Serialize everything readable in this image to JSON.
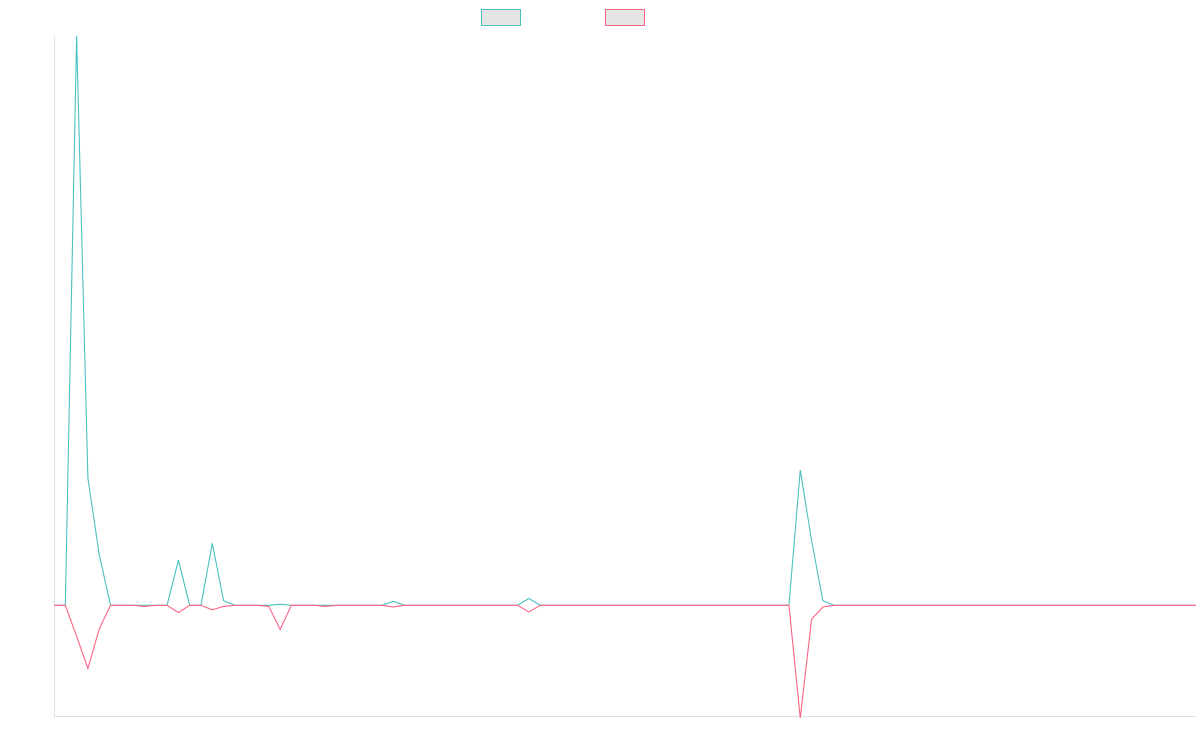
{
  "chart_data": {
    "type": "line",
    "title": "",
    "xlabel": "",
    "ylabel": "",
    "grid": false,
    "legend_position": "top-center",
    "ylim": [
      -2.0,
      10.1
    ],
    "series": [
      {
        "name": "",
        "color": "#4bc0c0",
        "fill": "#e5e5e5",
        "values": [
          0,
          0,
          10.1,
          2.25,
          0.9,
          0,
          0,
          0,
          0,
          0,
          0,
          0.8,
          0,
          0,
          1.1,
          0.08,
          0,
          0,
          0,
          0,
          0.02,
          0,
          0,
          0,
          0,
          0,
          0,
          0,
          0,
          0,
          0.07,
          0,
          0,
          0,
          0,
          0,
          0,
          0,
          0,
          0,
          0,
          0,
          0.12,
          0,
          0,
          0,
          0,
          0,
          0,
          0,
          0,
          0,
          0,
          0,
          0,
          0,
          0,
          0,
          0,
          0,
          0,
          0,
          0,
          0,
          0,
          0,
          2.4,
          1.15,
          0.08,
          0,
          0,
          0,
          0,
          0,
          0,
          0,
          0,
          0,
          0,
          0,
          0,
          0,
          0,
          0,
          0,
          0,
          0,
          0,
          0,
          0,
          0,
          0,
          0,
          0,
          0,
          0,
          0,
          0,
          0,
          0,
          0,
          0
        ]
      },
      {
        "name": "",
        "color": "#ff6384",
        "fill": "#e5e5e5",
        "values": [
          0,
          0,
          -0.55,
          -1.12,
          -0.42,
          0,
          0,
          0,
          -0.02,
          0,
          0,
          -0.13,
          0,
          0,
          -0.08,
          -0.02,
          0,
          0,
          0,
          -0.02,
          -0.43,
          0,
          0,
          0,
          -0.02,
          0,
          0,
          0,
          0,
          0,
          -0.03,
          0,
          0,
          0,
          0,
          0,
          0,
          0,
          0,
          0,
          0,
          0,
          -0.12,
          0,
          0,
          0,
          0,
          0,
          0,
          0,
          0,
          0,
          0,
          0,
          0,
          0,
          0,
          0,
          0,
          0,
          0,
          0,
          0,
          0,
          0,
          0,
          -2.0,
          -0.25,
          -0.03,
          0,
          0,
          0,
          0,
          0,
          0,
          0,
          0,
          0,
          0,
          0,
          0,
          0,
          0,
          0,
          0,
          0,
          0,
          0,
          0,
          0,
          0,
          0,
          0,
          0,
          0,
          0,
          0,
          0,
          0,
          0,
          0,
          0
        ]
      }
    ]
  }
}
